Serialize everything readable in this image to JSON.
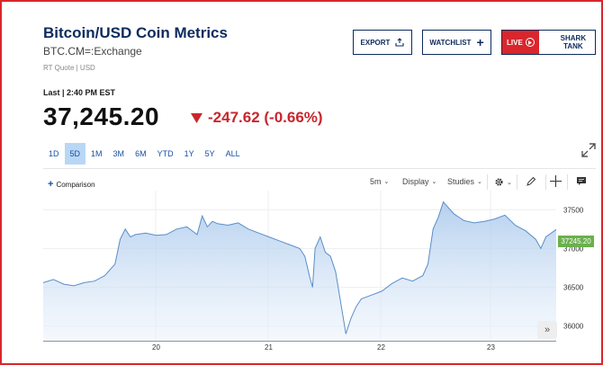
{
  "header": {
    "title": "Bitcoin/USD Coin Metrics",
    "symbol": "BTC.CM=:Exchange",
    "quote_meta": "RT Quote | USD"
  },
  "buttons": {
    "export": "EXPORT",
    "watchlist": "WATCHLIST",
    "live": "LIVE",
    "shark_tank": "SHARK TANK"
  },
  "quote": {
    "last_label": "Last | 2:40 PM EST",
    "price": "37,245.20",
    "change": "-247.62 (-0.66%)",
    "change_color": "#c8262d"
  },
  "ranges": [
    {
      "label": "1D"
    },
    {
      "label": "5D",
      "active": true
    },
    {
      "label": "1M"
    },
    {
      "label": "3M"
    },
    {
      "label": "6M"
    },
    {
      "label": "YTD"
    },
    {
      "label": "1Y"
    },
    {
      "label": "5Y"
    },
    {
      "label": "ALL"
    }
  ],
  "toolbar": {
    "comparison": "Comparison",
    "interval": "5m",
    "display": "Display",
    "studies": "Studies"
  },
  "chart_data": {
    "type": "area",
    "x_ticks": [
      "20",
      "21",
      "22",
      "23"
    ],
    "y_ticks": [
      36000,
      36500,
      37000,
      37500
    ],
    "ylim": [
      35800,
      37700
    ],
    "last_value_label": "37245.20",
    "series": [
      {
        "color": "#5a8ec9",
        "x": [
          0,
          0.02,
          0.04,
          0.06,
          0.08,
          0.1,
          0.12,
          0.14,
          0.15,
          0.16,
          0.17,
          0.18,
          0.2,
          0.22,
          0.24,
          0.26,
          0.28,
          0.3,
          0.31,
          0.32,
          0.33,
          0.34,
          0.36,
          0.38,
          0.4,
          0.42,
          0.44,
          0.46,
          0.48,
          0.5,
          0.51,
          0.52,
          0.525,
          0.53,
          0.54,
          0.55,
          0.56,
          0.57,
          0.58,
          0.59,
          0.6,
          0.61,
          0.62,
          0.64,
          0.66,
          0.68,
          0.7,
          0.72,
          0.74,
          0.75,
          0.76,
          0.77,
          0.78,
          0.8,
          0.82,
          0.84,
          0.86,
          0.88,
          0.9,
          0.92,
          0.94,
          0.96,
          0.97,
          0.98,
          1.0
        ],
        "y": [
          36560,
          36600,
          36540,
          36520,
          36560,
          36580,
          36650,
          36800,
          37120,
          37250,
          37150,
          37180,
          37200,
          37170,
          37180,
          37250,
          37280,
          37180,
          37420,
          37280,
          37350,
          37320,
          37300,
          37330,
          37250,
          37200,
          37150,
          37100,
          37050,
          37000,
          36900,
          36620,
          36500,
          37000,
          37150,
          36950,
          36900,
          36700,
          36300,
          35900,
          36100,
          36250,
          36350,
          36400,
          36450,
          36550,
          36620,
          36580,
          36650,
          36800,
          37250,
          37400,
          37600,
          37450,
          37360,
          37330,
          37350,
          37380,
          37430,
          37300,
          37230,
          37120,
          37000,
          37150,
          37245
        ]
      }
    ]
  }
}
